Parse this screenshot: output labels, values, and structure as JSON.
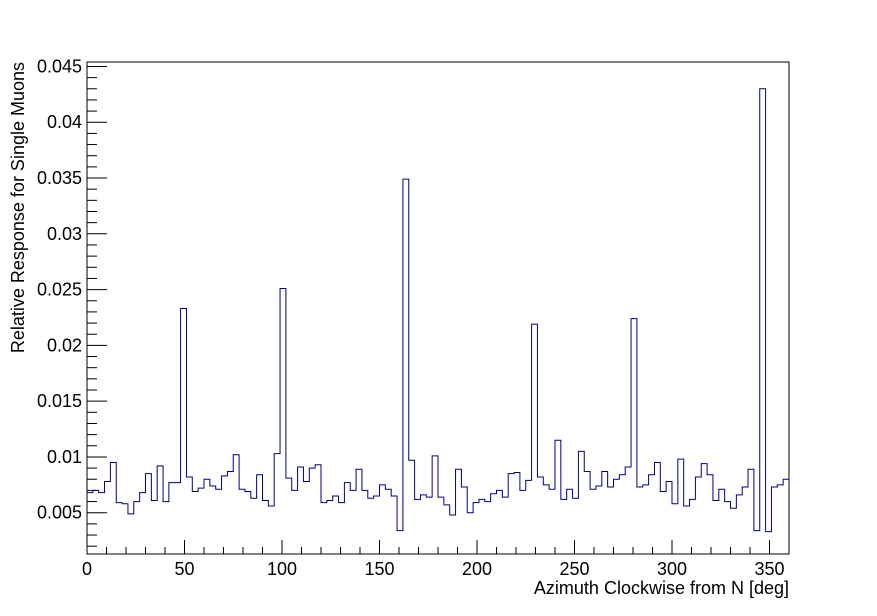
{
  "chart_data": {
    "type": "histogram",
    "xlabel": "Azimuth Clockwise from N [deg]",
    "ylabel": "Relative Response for Single Muons",
    "xlim": [
      0,
      360
    ],
    "ylim": [
      0.0013,
      0.0454
    ],
    "bin_width": 3,
    "x_ticks": [
      0,
      50,
      100,
      150,
      200,
      250,
      300,
      350
    ],
    "x_tick_labels": [
      "0",
      "50",
      "100",
      "150",
      "200",
      "250",
      "300",
      "350"
    ],
    "y_ticks": [
      0.005,
      0.01,
      0.015,
      0.02,
      0.025,
      0.03,
      0.035,
      0.04,
      0.045
    ],
    "y_tick_labels": [
      "0.005",
      "0.01",
      "0.015",
      "0.02",
      "0.025",
      "0.03",
      "0.035",
      "0.04",
      "0.045"
    ],
    "grid": false,
    "line_color": "#000080",
    "series": [
      {
        "values": [
          0.0068,
          0.007,
          0.0068,
          0.0078,
          0.0095,
          0.0059,
          0.0058,
          0.0049,
          0.006,
          0.0068,
          0.0085,
          0.0061,
          0.0092,
          0.006,
          0.0077,
          0.0077,
          0.0233,
          0.0082,
          0.0069,
          0.0072,
          0.008,
          0.0074,
          0.0071,
          0.0083,
          0.0087,
          0.0102,
          0.0071,
          0.0069,
          0.0063,
          0.0084,
          0.0061,
          0.0056,
          0.0103,
          0.0251,
          0.0081,
          0.007,
          0.0091,
          0.0078,
          0.009,
          0.0093,
          0.0059,
          0.0061,
          0.0065,
          0.0059,
          0.0077,
          0.007,
          0.0089,
          0.007,
          0.0063,
          0.0065,
          0.0075,
          0.0071,
          0.0065,
          0.0034,
          0.0349,
          0.0097,
          0.0062,
          0.0066,
          0.0064,
          0.0101,
          0.0064,
          0.0057,
          0.0048,
          0.0089,
          0.0073,
          0.005,
          0.0059,
          0.0062,
          0.006,
          0.0067,
          0.007,
          0.0064,
          0.0085,
          0.0086,
          0.007,
          0.0079,
          0.0219,
          0.0082,
          0.0075,
          0.0071,
          0.0115,
          0.0062,
          0.0071,
          0.0063,
          0.0105,
          0.0087,
          0.0071,
          0.0074,
          0.0087,
          0.0073,
          0.008,
          0.0084,
          0.0091,
          0.0224,
          0.0073,
          0.0075,
          0.0084,
          0.0095,
          0.0069,
          0.0078,
          0.0058,
          0.0098,
          0.0056,
          0.0062,
          0.0082,
          0.0094,
          0.0084,
          0.0061,
          0.0071,
          0.006,
          0.0054,
          0.0066,
          0.0073,
          0.0089,
          0.0034,
          0.043,
          0.0033,
          0.0073,
          0.0075,
          0.008,
          0.0077
        ]
      }
    ]
  }
}
